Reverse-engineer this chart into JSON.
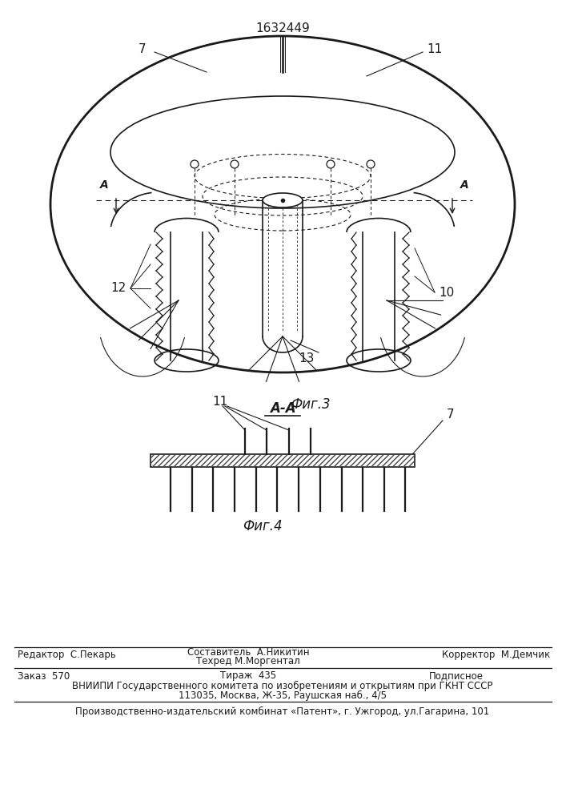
{
  "patent_number": "1632449",
  "fig3_caption": "Фиг.3",
  "fig4_caption": "Фиг.4",
  "aa_label": "А-А",
  "label_7": "7",
  "label_10": "10",
  "label_11": "11",
  "label_12": "12",
  "label_13": "13",
  "label_A_left": "А",
  "label_A_right": "А",
  "bg_color": "#ffffff",
  "line_color": "#1a1a1a",
  "footer_line1_left": "Редактор  С.Пекарь",
  "footer_line1_mid_top": "Составитель  А.Никитин",
  "footer_line1_mid_bot": "Техред М.Моргентал",
  "footer_line1_right": "Корректор  М.Демчик",
  "footer_line2_left": "Заказ  570",
  "footer_line2_mid": "Тираж  435",
  "footer_line2_right": "Подписное",
  "footer_line3": "ВНИИПИ Государственного комитета по изобретениям и открытиям при ГКНТ СССР",
  "footer_line4": "113035, Москва, Ж-35, Раушская наб., 4/5",
  "footer_line5": "Производственно-издательский комбинат «Патент», г. Ужгород, ул.Гагарина, 101",
  "hatch_color": "#444444"
}
